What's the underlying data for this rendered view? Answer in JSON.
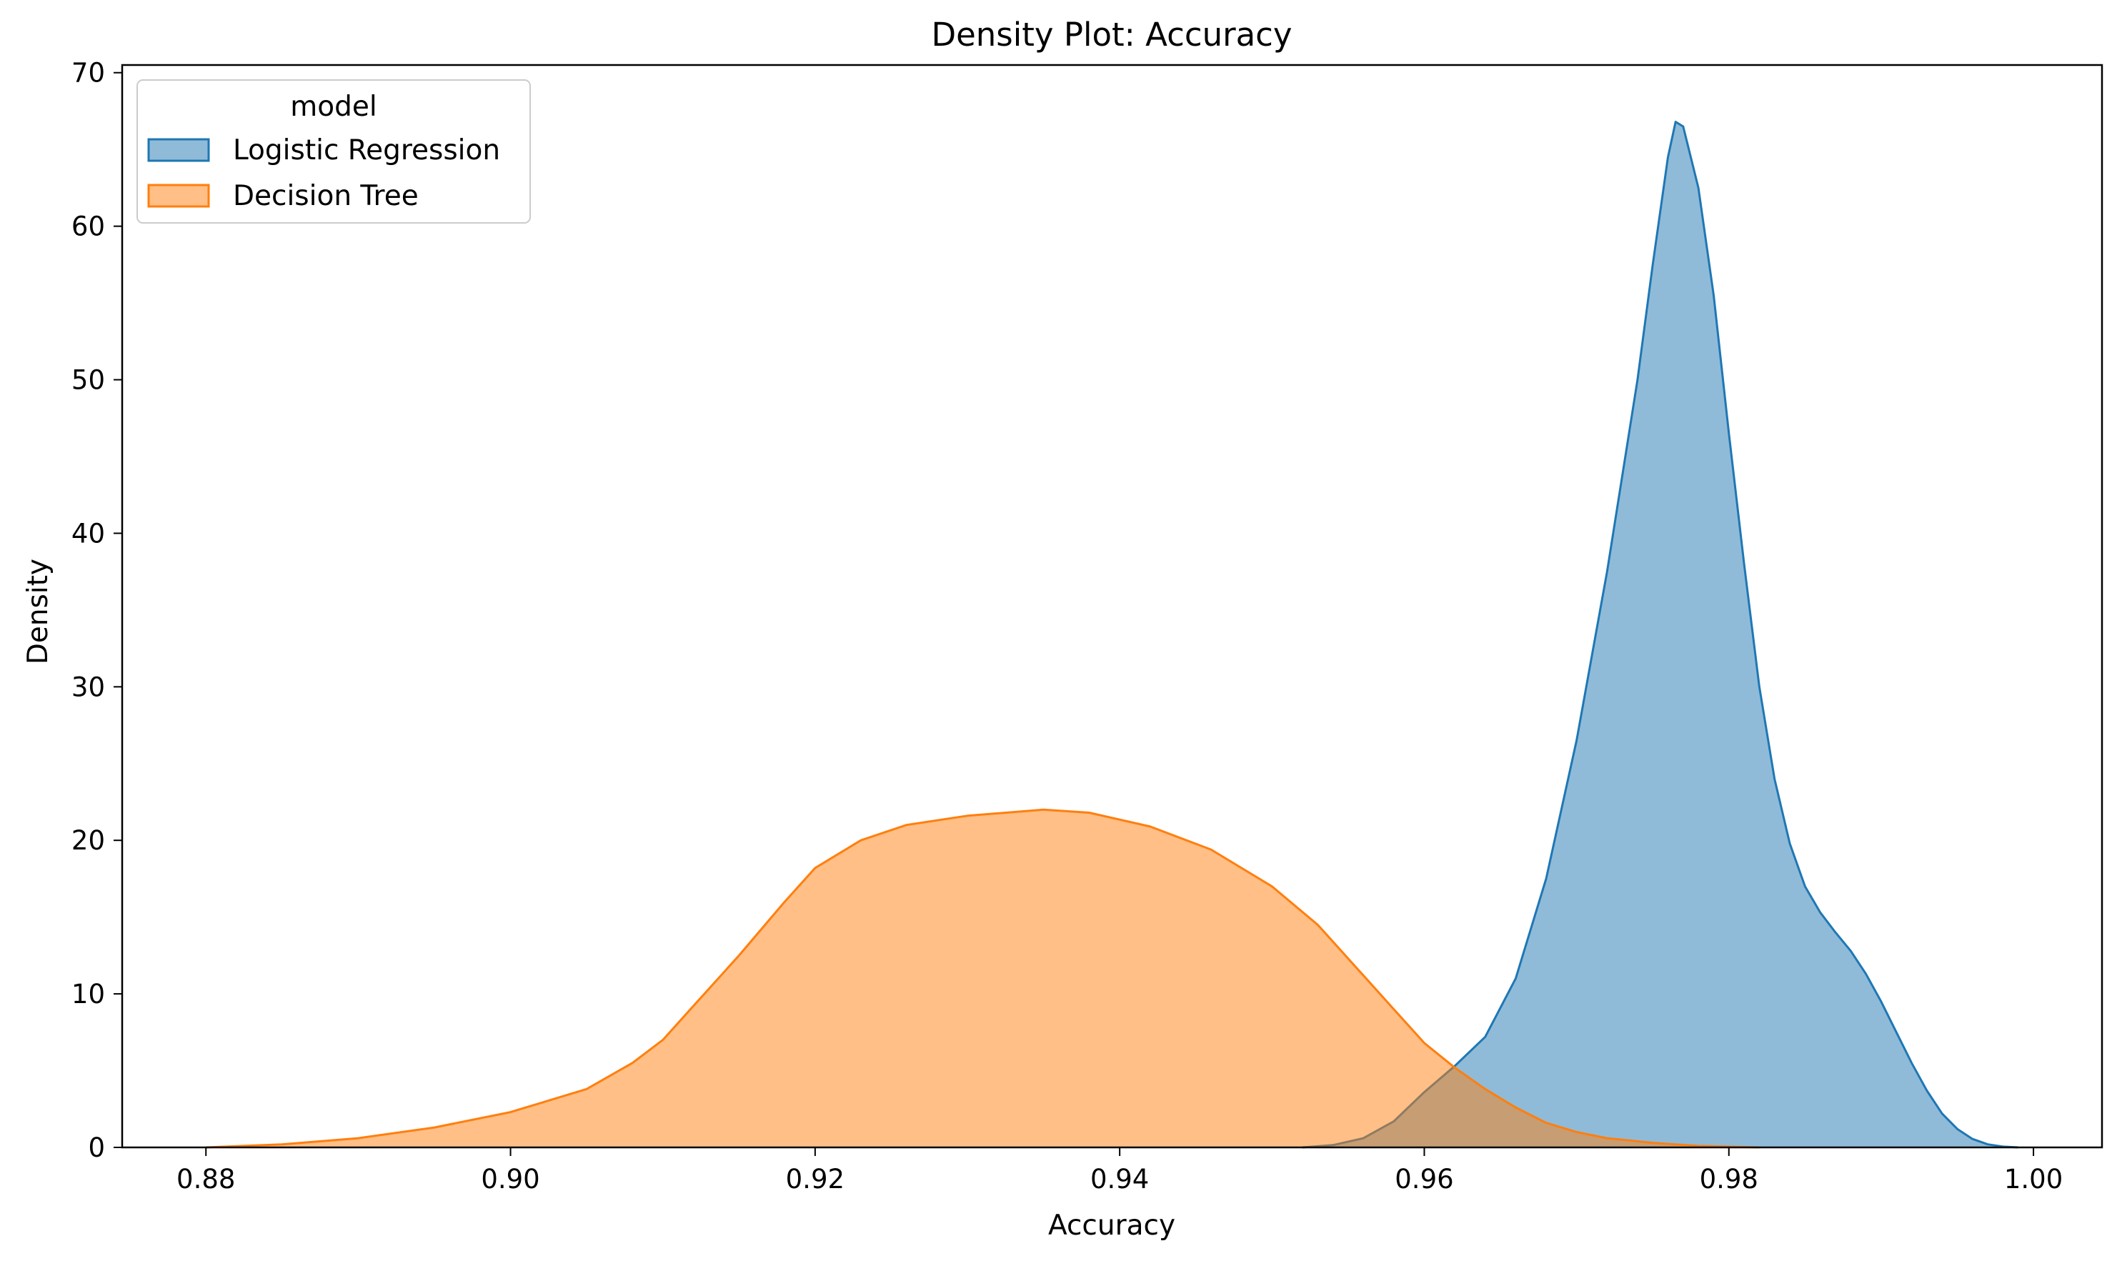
{
  "chart_data": {
    "type": "area",
    "title": "Density Plot: Accuracy",
    "xlabel": "Accuracy",
    "ylabel": "Density",
    "xlim": [
      0.8745,
      1.0045
    ],
    "ylim": [
      0,
      70.5
    ],
    "xticks": [
      0.88,
      0.9,
      0.92,
      0.94,
      0.96,
      0.98,
      1.0
    ],
    "xtick_labels": [
      "0.88",
      "0.90",
      "0.92",
      "0.94",
      "0.96",
      "0.98",
      "1.00"
    ],
    "yticks": [
      0,
      10,
      20,
      30,
      40,
      50,
      60,
      70
    ],
    "ytick_labels": [
      "0",
      "10",
      "20",
      "30",
      "40",
      "50",
      "60",
      "70"
    ],
    "grid": false,
    "legend": {
      "title": "model",
      "placement": "upper left"
    },
    "series": [
      {
        "name": "Logistic Regression",
        "color": "#1f77b4",
        "fill_opacity": 0.5,
        "points": [
          [
            0.952,
            0.0
          ],
          [
            0.954,
            0.15
          ],
          [
            0.956,
            0.6
          ],
          [
            0.958,
            1.7
          ],
          [
            0.96,
            3.6
          ],
          [
            0.962,
            5.3
          ],
          [
            0.964,
            7.2
          ],
          [
            0.966,
            11.0
          ],
          [
            0.968,
            17.5
          ],
          [
            0.97,
            26.5
          ],
          [
            0.972,
            37.5
          ],
          [
            0.974,
            50.0
          ],
          [
            0.975,
            57.5
          ],
          [
            0.976,
            64.5
          ],
          [
            0.9765,
            66.8
          ],
          [
            0.977,
            66.5
          ],
          [
            0.978,
            62.5
          ],
          [
            0.979,
            55.5
          ],
          [
            0.98,
            46.5
          ],
          [
            0.981,
            38.0
          ],
          [
            0.982,
            30.0
          ],
          [
            0.983,
            24.0
          ],
          [
            0.984,
            19.8
          ],
          [
            0.985,
            17.0
          ],
          [
            0.986,
            15.3
          ],
          [
            0.987,
            14.0
          ],
          [
            0.988,
            12.8
          ],
          [
            0.989,
            11.3
          ],
          [
            0.99,
            9.5
          ],
          [
            0.991,
            7.5
          ],
          [
            0.992,
            5.5
          ],
          [
            0.993,
            3.7
          ],
          [
            0.994,
            2.2
          ],
          [
            0.995,
            1.2
          ],
          [
            0.996,
            0.55
          ],
          [
            0.997,
            0.2
          ],
          [
            0.998,
            0.05
          ],
          [
            0.999,
            0.0
          ]
        ]
      },
      {
        "name": "Decision Tree",
        "color": "#ff7f0e",
        "fill_opacity": 0.5,
        "points": [
          [
            0.88,
            0.0
          ],
          [
            0.885,
            0.2
          ],
          [
            0.89,
            0.6
          ],
          [
            0.895,
            1.3
          ],
          [
            0.9,
            2.3
          ],
          [
            0.905,
            3.8
          ],
          [
            0.908,
            5.5
          ],
          [
            0.91,
            7.0
          ],
          [
            0.912,
            9.2
          ],
          [
            0.915,
            12.5
          ],
          [
            0.918,
            16.0
          ],
          [
            0.92,
            18.2
          ],
          [
            0.923,
            20.0
          ],
          [
            0.926,
            21.0
          ],
          [
            0.93,
            21.6
          ],
          [
            0.935,
            22.0
          ],
          [
            0.938,
            21.8
          ],
          [
            0.942,
            20.9
          ],
          [
            0.946,
            19.4
          ],
          [
            0.95,
            17.0
          ],
          [
            0.953,
            14.5
          ],
          [
            0.956,
            11.2
          ],
          [
            0.958,
            9.0
          ],
          [
            0.96,
            6.8
          ],
          [
            0.962,
            5.2
          ],
          [
            0.964,
            3.8
          ],
          [
            0.966,
            2.6
          ],
          [
            0.968,
            1.6
          ],
          [
            0.97,
            1.0
          ],
          [
            0.972,
            0.6
          ],
          [
            0.975,
            0.3
          ],
          [
            0.978,
            0.1
          ],
          [
            0.982,
            0.0
          ]
        ]
      }
    ]
  }
}
